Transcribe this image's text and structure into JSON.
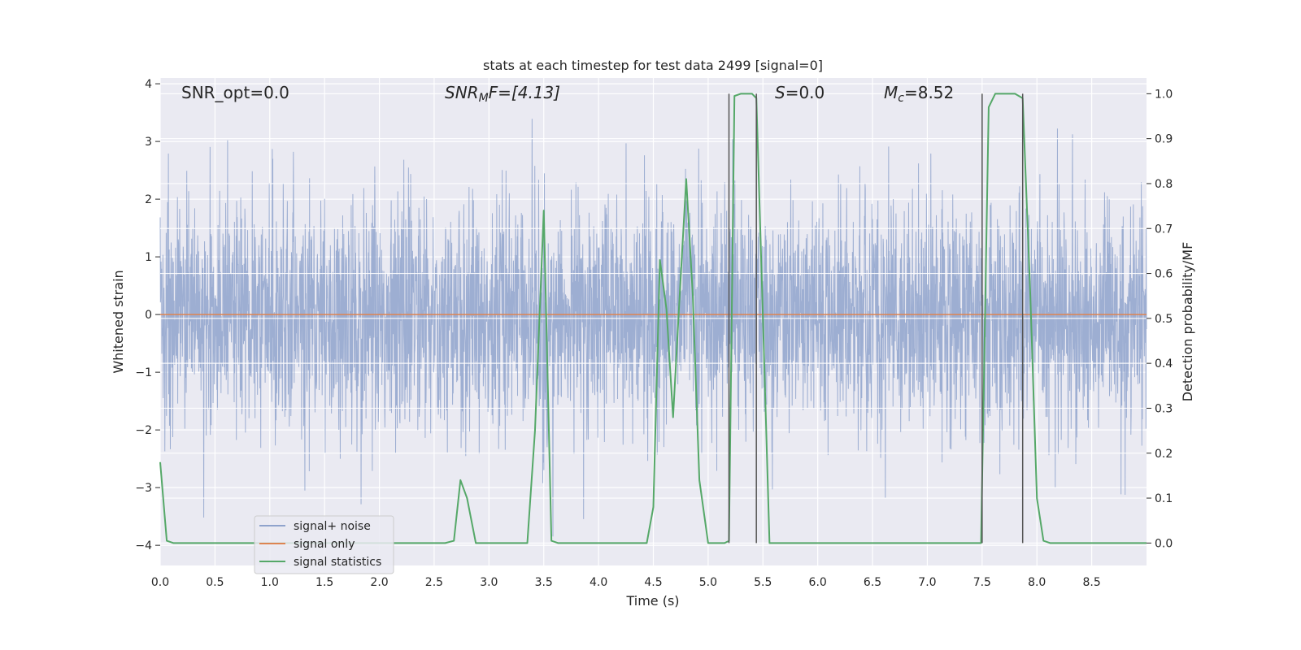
{
  "chart_data": {
    "type": "line",
    "title": "stats at each timestep for test data 2499 [signal=0]",
    "xlabel": "Time (s)",
    "ylabel_left": "Whitened strain",
    "ylabel_right": "Detection probability/MF",
    "xlim": [
      0,
      9.0
    ],
    "ylim_left": [
      -4.35,
      4.1
    ],
    "ylim_right": [
      -0.05,
      1.035
    ],
    "x_ticks": [
      0.0,
      0.5,
      1.0,
      1.5,
      2.0,
      2.5,
      3.0,
      3.5,
      4.0,
      4.5,
      5.0,
      5.5,
      6.0,
      6.5,
      7.0,
      7.5,
      8.0,
      8.5
    ],
    "x_tick_labels": [
      "0.0",
      "0.5",
      "1.0",
      "1.5",
      "2.0",
      "2.5",
      "3.0",
      "3.5",
      "4.0",
      "4.5",
      "5.0",
      "5.5",
      "6.0",
      "6.5",
      "7.0",
      "7.5",
      "8.0",
      "8.5"
    ],
    "y_left_ticks": [
      -4,
      -3,
      -2,
      -1,
      0,
      1,
      2,
      3,
      4
    ],
    "y_left_tick_labels": [
      "−4",
      "−3",
      "−2",
      "−1",
      "0",
      "1",
      "2",
      "3",
      "4"
    ],
    "y_right_ticks": [
      0.0,
      0.1,
      0.2,
      0.3,
      0.4,
      0.5,
      0.6,
      0.7,
      0.8,
      0.9,
      1.0
    ],
    "y_right_tick_labels": [
      "0.0",
      "0.1",
      "0.2",
      "0.3",
      "0.4",
      "0.5",
      "0.6",
      "0.7",
      "0.8",
      "0.9",
      "1.0"
    ],
    "grid": true,
    "annotations": {
      "snr_opt": "SNR_opt=0.0",
      "snr_mf_main": "SNR",
      "snr_mf_sub": "M",
      "snr_mf_rest": "F=[4.13]",
      "s_main": "S",
      "s_rest": "=0.0",
      "mc_main": "M",
      "mc_sub": "c",
      "mc_rest": "=8.52"
    },
    "legend": {
      "position": "lower-left",
      "entries": [
        "signal+ noise",
        "signal only",
        "signal statistics"
      ]
    },
    "series": [
      {
        "name": "signal+ noise",
        "axis": "left",
        "color": "#8fa3cc",
        "kind": "noise",
        "sigma": 1.0,
        "x_range": [
          0,
          9.0
        ]
      },
      {
        "name": "signal only",
        "axis": "left",
        "color": "#dd8452",
        "x": [
          0,
          9.0
        ],
        "y": [
          0,
          0
        ]
      },
      {
        "name": "signal statistics",
        "axis": "right",
        "color": "#55a868",
        "x": [
          0.0,
          0.06,
          0.12,
          2.6,
          2.68,
          2.74,
          2.8,
          2.88,
          3.35,
          3.42,
          3.5,
          3.57,
          3.63,
          4.44,
          4.5,
          4.56,
          4.62,
          4.68,
          4.74,
          4.8,
          4.86,
          4.92,
          5.0,
          5.15,
          5.19,
          5.24,
          5.3,
          5.4,
          5.44,
          5.5,
          5.56,
          5.62,
          7.49,
          7.56,
          7.62,
          7.7,
          7.8,
          7.87,
          7.94,
          8.0,
          8.06,
          8.12,
          9.0
        ],
        "y": [
          0.18,
          0.005,
          0.0,
          0.0,
          0.005,
          0.14,
          0.1,
          0.0,
          0.0,
          0.25,
          0.74,
          0.005,
          0.0,
          0.0,
          0.08,
          0.63,
          0.52,
          0.28,
          0.55,
          0.81,
          0.55,
          0.14,
          0.0,
          0.0,
          0.005,
          0.995,
          1.0,
          1.0,
          0.99,
          0.5,
          0.0,
          0.0,
          0.0,
          0.97,
          1.0,
          1.0,
          1.0,
          0.99,
          0.55,
          0.1,
          0.005,
          0.0,
          0.0
        ]
      }
    ],
    "vertical_lines": [
      5.19,
      5.44,
      7.5,
      7.87
    ],
    "vertical_line_color": "#555555"
  }
}
